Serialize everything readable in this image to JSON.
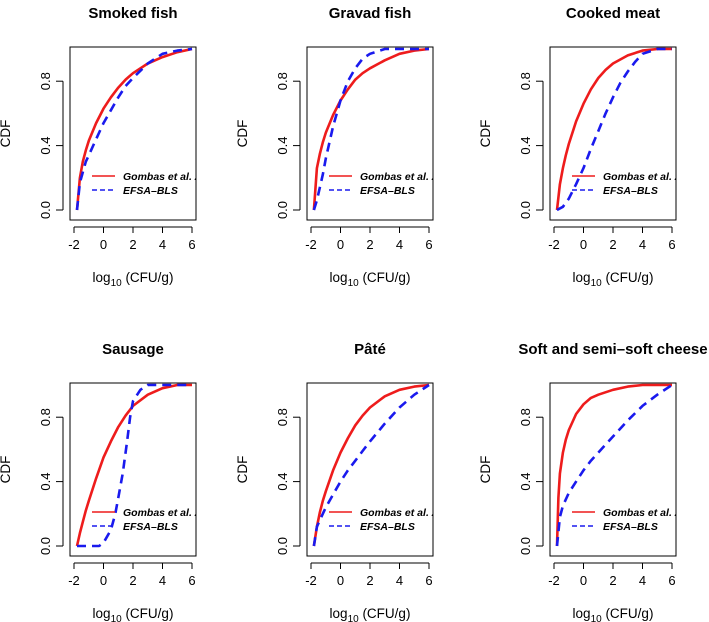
{
  "chart_data": [
    {
      "type": "line",
      "title": "Smoked fish",
      "xlabel": "log10 (CFU/g)",
      "ylabel": "CDF",
      "xlim": [
        -2,
        6
      ],
      "ylim": [
        0,
        1
      ],
      "xticks": [
        "-2",
        "0",
        "2",
        "4",
        "6"
      ],
      "yticks": [
        "0.0",
        "0.4",
        "0.8"
      ],
      "legend": [
        "Gombas et al. 2",
        "EFSA–BLS"
      ],
      "series": [
        {
          "name": "Gombas et al. 2",
          "color": "#ee1c1c",
          "dash": "solid",
          "x": [
            -1.8,
            -1.6,
            -1.4,
            -1.2,
            -1.0,
            -0.5,
            0.0,
            0.5,
            1.0,
            1.5,
            2.0,
            3.0,
            4.0,
            5.0,
            6.0
          ],
          "y": [
            0.0,
            0.2,
            0.3,
            0.37,
            0.43,
            0.54,
            0.63,
            0.7,
            0.76,
            0.81,
            0.85,
            0.91,
            0.95,
            0.98,
            1.0
          ]
        },
        {
          "name": "EFSA–BLS",
          "color": "#1a1aee",
          "dash": "dashed",
          "x": [
            -1.8,
            -1.6,
            -1.2,
            -1.0,
            -0.5,
            0.0,
            0.5,
            1.0,
            1.5,
            2.0,
            3.0,
            4.0,
            5.0,
            6.0
          ],
          "y": [
            0.0,
            0.17,
            0.3,
            0.34,
            0.44,
            0.54,
            0.62,
            0.7,
            0.77,
            0.82,
            0.91,
            0.97,
            0.99,
            1.0
          ]
        }
      ]
    },
    {
      "type": "line",
      "title": "Gravad fish",
      "xlabel": "log10 (CFU/g)",
      "ylabel": "CDF",
      "xlim": [
        -2,
        6
      ],
      "ylim": [
        0,
        1
      ],
      "xticks": [
        "-2",
        "0",
        "2",
        "4",
        "6"
      ],
      "yticks": [
        "0.0",
        "0.4",
        "0.8"
      ],
      "legend": [
        "Gombas et al. 2",
        "EFSA–BLS"
      ],
      "series": [
        {
          "name": "Gombas et al. 2",
          "color": "#ee1c1c",
          "dash": "solid",
          "x": [
            -1.8,
            -1.6,
            -1.4,
            -1.2,
            -1.0,
            -0.5,
            0.0,
            0.5,
            1.0,
            1.5,
            2.0,
            3.0,
            4.0,
            5.0,
            6.0
          ],
          "y": [
            0.0,
            0.26,
            0.35,
            0.42,
            0.48,
            0.59,
            0.68,
            0.75,
            0.81,
            0.85,
            0.88,
            0.93,
            0.97,
            0.99,
            1.0
          ]
        },
        {
          "name": "EFSA–BLS",
          "color": "#1a1aee",
          "dash": "dashed",
          "x": [
            -1.8,
            -1.6,
            -1.2,
            -1.0,
            -0.5,
            0.0,
            0.5,
            1.0,
            1.5,
            2.0,
            3.0,
            4.0,
            5.0,
            6.0
          ],
          "y": [
            0.0,
            0.06,
            0.22,
            0.32,
            0.52,
            0.68,
            0.8,
            0.88,
            0.94,
            0.97,
            1.0,
            1.0,
            1.0,
            1.0
          ]
        }
      ]
    },
    {
      "type": "line",
      "title": "Cooked meat",
      "xlabel": "log10 (CFU/g)",
      "ylabel": "CDF",
      "xlim": [
        -2,
        6
      ],
      "ylim": [
        0,
        1
      ],
      "xticks": [
        "-2",
        "0",
        "2",
        "4",
        "6"
      ],
      "yticks": [
        "0.0",
        "0.4",
        "0.8"
      ],
      "legend": [
        "Gombas et al. 2",
        "EFSA–BLS"
      ],
      "series": [
        {
          "name": "Gombas et al. 2",
          "color": "#ee1c1c",
          "dash": "solid",
          "x": [
            -1.8,
            -1.6,
            -1.4,
            -1.2,
            -1.0,
            -0.5,
            0.0,
            0.5,
            1.0,
            1.5,
            2.0,
            3.0,
            4.0,
            5.0,
            6.0
          ],
          "y": [
            0.0,
            0.16,
            0.26,
            0.34,
            0.41,
            0.55,
            0.66,
            0.75,
            0.82,
            0.87,
            0.91,
            0.96,
            0.99,
            1.0,
            1.0
          ]
        },
        {
          "name": "EFSA–BLS",
          "color": "#1a1aee",
          "dash": "dashed",
          "x": [
            -1.8,
            -1.4,
            -1.0,
            -0.5,
            0.0,
            0.5,
            1.0,
            1.5,
            2.0,
            2.5,
            3.0,
            3.5,
            4.0,
            5.0,
            6.0
          ],
          "y": [
            0.0,
            0.02,
            0.07,
            0.16,
            0.26,
            0.38,
            0.49,
            0.6,
            0.7,
            0.79,
            0.86,
            0.92,
            0.97,
            1.0,
            1.0
          ]
        }
      ]
    },
    {
      "type": "line",
      "title": "Sausage",
      "xlabel": "log10 (CFU/g)",
      "ylabel": "CDF",
      "xlim": [
        -2,
        6
      ],
      "ylim": [
        0,
        1
      ],
      "xticks": [
        "-2",
        "0",
        "2",
        "4",
        "6"
      ],
      "yticks": [
        "0.0",
        "0.4",
        "0.8"
      ],
      "legend": [
        "Gombas et al. 2",
        "EFSA–BLS"
      ],
      "series": [
        {
          "name": "Gombas et al. 2",
          "color": "#ee1c1c",
          "dash": "solid",
          "x": [
            -1.8,
            -1.6,
            -1.4,
            -1.2,
            -1.0,
            -0.5,
            0.0,
            0.5,
            1.0,
            1.5,
            2.0,
            3.0,
            4.0,
            5.0,
            6.0
          ],
          "y": [
            0.0,
            0.08,
            0.15,
            0.22,
            0.28,
            0.42,
            0.55,
            0.65,
            0.74,
            0.81,
            0.87,
            0.94,
            0.98,
            1.0,
            1.0
          ]
        },
        {
          "name": "EFSA–BLS",
          "color": "#1a1aee",
          "dash": "dashed",
          "x": [
            -1.8,
            -0.3,
            0.0,
            0.5,
            0.8,
            1.0,
            1.3,
            1.6,
            1.8,
            2.0,
            2.5,
            3.0,
            4.0,
            5.0,
            6.0
          ],
          "y": [
            0.0,
            0.0,
            0.02,
            0.1,
            0.2,
            0.3,
            0.45,
            0.65,
            0.8,
            0.9,
            0.97,
            1.0,
            1.0,
            1.0,
            1.0
          ]
        }
      ]
    },
    {
      "type": "line",
      "title": "Pâté",
      "xlabel": "log10 (CFU/g)",
      "ylabel": "CDF",
      "xlim": [
        -2,
        6
      ],
      "ylim": [
        0,
        1
      ],
      "xticks": [
        "-2",
        "0",
        "2",
        "4",
        "6"
      ],
      "yticks": [
        "0.0",
        "0.4",
        "0.8"
      ],
      "legend": [
        "Gombas et al. 2",
        "EFSA–BLS"
      ],
      "series": [
        {
          "name": "Gombas et al. 2",
          "color": "#ee1c1c",
          "dash": "solid",
          "x": [
            -1.8,
            -1.6,
            -1.4,
            -1.2,
            -1.0,
            -0.5,
            0.0,
            0.5,
            1.0,
            1.5,
            2.0,
            3.0,
            4.0,
            5.0,
            6.0
          ],
          "y": [
            0.0,
            0.12,
            0.21,
            0.28,
            0.34,
            0.47,
            0.58,
            0.67,
            0.75,
            0.81,
            0.86,
            0.93,
            0.97,
            0.99,
            1.0
          ]
        },
        {
          "name": "EFSA–BLS",
          "color": "#1a1aee",
          "dash": "dashed",
          "x": [
            -1.8,
            -1.6,
            -1.2,
            -1.0,
            -0.5,
            0.0,
            0.5,
            1.0,
            1.5,
            2.0,
            3.0,
            4.0,
            5.0,
            6.0
          ],
          "y": [
            0.0,
            0.12,
            0.2,
            0.24,
            0.32,
            0.4,
            0.47,
            0.53,
            0.59,
            0.65,
            0.76,
            0.86,
            0.94,
            1.0
          ]
        }
      ]
    },
    {
      "type": "line",
      "title": "Soft and semi–soft cheese",
      "xlabel": "log10 (CFU/g)",
      "ylabel": "CDF",
      "xlim": [
        -2,
        6
      ],
      "ylim": [
        0,
        1
      ],
      "xticks": [
        "-2",
        "0",
        "2",
        "4",
        "6"
      ],
      "yticks": [
        "0.0",
        "0.4",
        "0.8"
      ],
      "legend": [
        "Gombas et al. 2",
        "EFSA–BLS"
      ],
      "series": [
        {
          "name": "Gombas et al. 2",
          "color": "#ee1c1c",
          "dash": "solid",
          "x": [
            -1.8,
            -1.7,
            -1.6,
            -1.4,
            -1.2,
            -1.0,
            -0.5,
            0.0,
            0.5,
            1.0,
            2.0,
            3.0,
            4.0,
            5.0,
            6.0
          ],
          "y": [
            0.0,
            0.3,
            0.45,
            0.58,
            0.66,
            0.72,
            0.82,
            0.88,
            0.92,
            0.94,
            0.97,
            0.99,
            1.0,
            1.0,
            1.0
          ]
        },
        {
          "name": "EFSA–BLS",
          "color": "#1a1aee",
          "dash": "dashed",
          "x": [
            -1.8,
            -1.6,
            -1.4,
            -1.0,
            -0.5,
            0.0,
            0.5,
            1.0,
            1.5,
            2.0,
            3.0,
            4.0,
            5.0,
            6.0
          ],
          "y": [
            0.0,
            0.18,
            0.25,
            0.33,
            0.4,
            0.47,
            0.53,
            0.58,
            0.63,
            0.68,
            0.78,
            0.87,
            0.94,
            1.0
          ]
        }
      ]
    }
  ]
}
